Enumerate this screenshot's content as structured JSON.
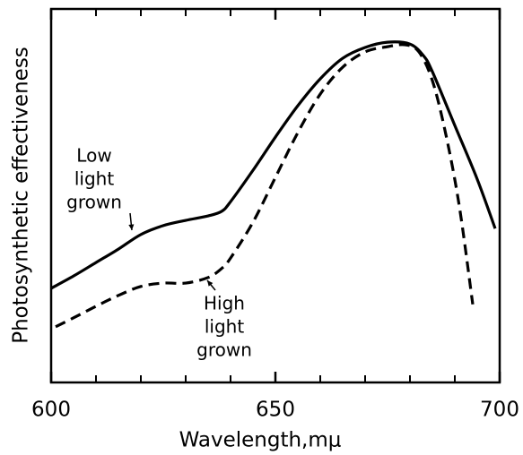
{
  "chart_data": {
    "type": "line",
    "xlabel": "Wavelength,mμ",
    "ylabel": "Photosynthetic effectiveness",
    "xlim": [
      600,
      700
    ],
    "ylim": [
      0,
      1
    ],
    "xticks": [
      600,
      650,
      700
    ],
    "xminor_ticks": [
      610,
      620,
      630,
      640,
      660,
      670,
      680,
      690
    ],
    "series": [
      {
        "label": [
          "Low",
          "light",
          "grown"
        ],
        "color": "#000000",
        "dash": false,
        "x": [
          600,
          605,
          610,
          615,
          620,
          625,
          630,
          635,
          638,
          640,
          645,
          650,
          655,
          660,
          665,
          670,
          675,
          680,
          683,
          685,
          690,
          695,
          699
        ],
        "values": [
          0.252,
          0.285,
          0.321,
          0.357,
          0.396,
          0.42,
          0.434,
          0.446,
          0.458,
          0.484,
          0.568,
          0.657,
          0.741,
          0.813,
          0.868,
          0.897,
          0.911,
          0.906,
          0.875,
          0.832,
          0.688,
          0.544,
          0.412
        ]
      },
      {
        "label": [
          "High",
          "light",
          "grown"
        ],
        "color": "#000000",
        "dash": true,
        "x": [
          601,
          605,
          610,
          615,
          620,
          625,
          630,
          635,
          638,
          640,
          645,
          650,
          655,
          660,
          665,
          670,
          675,
          679,
          682,
          685,
          688,
          691,
          694
        ],
        "values": [
          0.149,
          0.173,
          0.204,
          0.233,
          0.257,
          0.266,
          0.266,
          0.281,
          0.305,
          0.333,
          0.429,
          0.549,
          0.669,
          0.772,
          0.844,
          0.885,
          0.899,
          0.904,
          0.885,
          0.808,
          0.664,
          0.472,
          0.209
        ]
      }
    ]
  }
}
